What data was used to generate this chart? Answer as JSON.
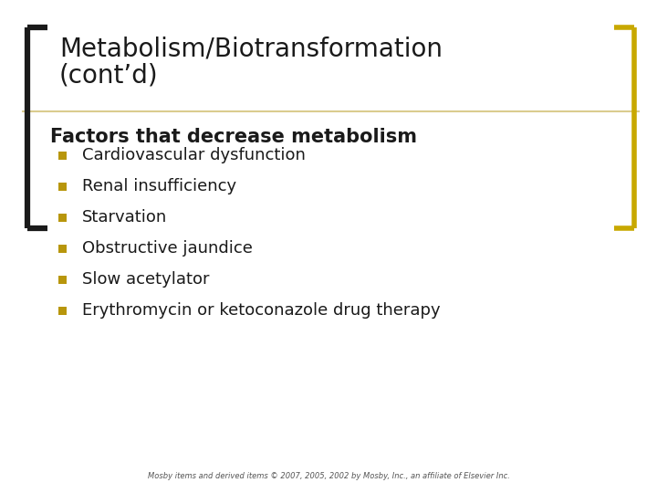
{
  "title_line1": "Metabolism/Biotransformation",
  "title_line2": "(cont’d)",
  "subtitle": "Factors that decrease metabolism",
  "bullet_items": [
    "Cardiovascular dysfunction",
    "Renal insufficiency",
    "Starvation",
    "Obstructive jaundice",
    "Slow acetylator",
    "Erythromycin or ketoconazole drug therapy"
  ],
  "footer": "Mosby items and derived items © 2007, 2005, 2002 by Mosby, Inc., an affiliate of Elsevier Inc.",
  "bg_color": "#ffffff",
  "title_color": "#1a1a1a",
  "subtitle_color": "#1a1a1a",
  "bullet_color": "#1a1a1a",
  "bullet_square_color": "#b8960c",
  "bracket_color": "#1a1a1a",
  "bracket_accent_color": "#c8a800",
  "divider_color": "#d4c47a",
  "title_fontsize": 20,
  "subtitle_fontsize": 15,
  "bullet_fontsize": 13,
  "footer_fontsize": 6
}
